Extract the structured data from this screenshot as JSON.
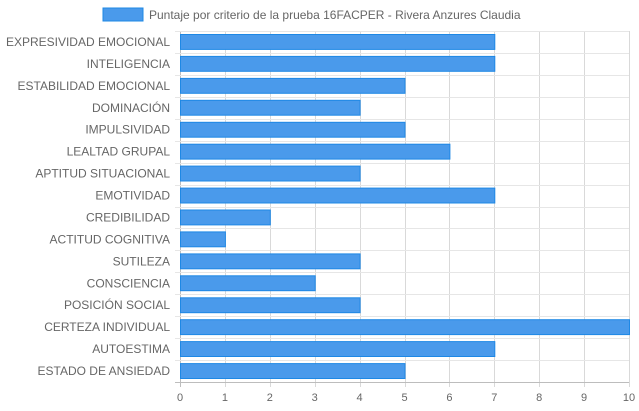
{
  "chart_data": {
    "type": "bar",
    "orientation": "horizontal",
    "categories": [
      "EXPRESIVIDAD EMOCIONAL",
      "INTELIGENCIA",
      "ESTABILIDAD EMOCIONAL",
      "DOMINACIÓN",
      "IMPULSIVIDAD",
      "LEALTAD GRUPAL",
      "APTITUD SITUACIONAL",
      "EMOTIVIDAD",
      "CREDIBILIDAD",
      "ACTITUD COGNITIVA",
      "SUTILEZA",
      "CONSCIENCIA",
      "POSICIÓN SOCIAL",
      "CERTEZA INDIVIDUAL",
      "AUTOESTIMA",
      "ESTADO DE ANSIEDAD"
    ],
    "series": [
      {
        "name": "Puntaje por criterio de la prueba 16FACPER - Rivera Anzures Claudia",
        "values": [
          7,
          7,
          5,
          4,
          5,
          6,
          4,
          7,
          2,
          1,
          4,
          3,
          4,
          10,
          7,
          5
        ],
        "color": "#4a9aeb",
        "border_color": "#1e88e5"
      }
    ],
    "xlim": [
      0,
      10
    ],
    "x_ticks": [
      "0",
      "1",
      "2",
      "3",
      "4",
      "5",
      "6",
      "7",
      "8",
      "9",
      "10"
    ],
    "grid": true,
    "legend_position": "top"
  }
}
